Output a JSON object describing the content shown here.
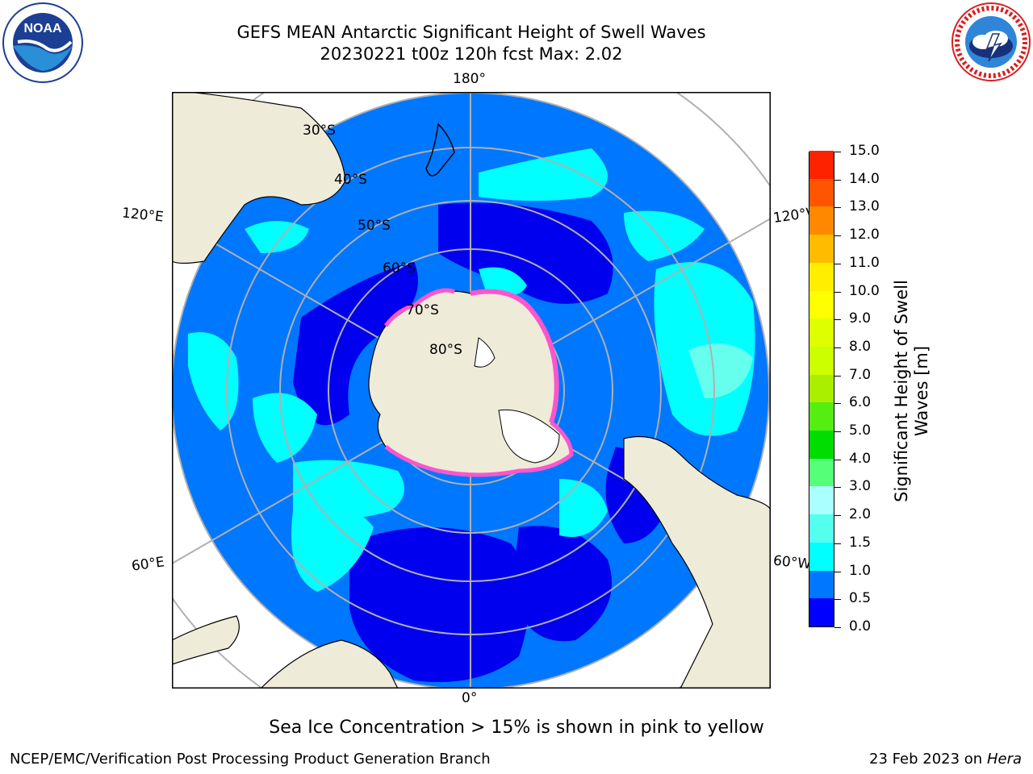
{
  "title": {
    "line1": "GEFS MEAN Antarctic Significant Height of Swell Waves",
    "line2": "20230221 t00z 120h fcst   Max: 2.02"
  },
  "logos": {
    "left": {
      "text": "NOAA",
      "ring_text": "NATIONAL OCEANIC AND ATMOSPHERIC ADMINISTRATION · U.S. DEPARTMENT OF COMMERCE"
    },
    "right": {
      "ring_text": "NATIONAL WEATHER SERVICE"
    }
  },
  "map": {
    "projection": "south polar stereographic",
    "meridian_labels": {
      "top": "180°",
      "bottom": "0°",
      "left_upper": "120°E",
      "left_lower": "60°E",
      "right_upper": "120°W",
      "right_lower": "60°W"
    },
    "parallel_labels": [
      "30°S",
      "40°S",
      "50°S",
      "60°S",
      "70°S",
      "80°S"
    ],
    "colors": {
      "ocean_low": "#0000ee",
      "ocean_mid": "#0077ff",
      "ocean_high": "#00ffff",
      "ocean_higher": "#66ffee",
      "land": "#eeebd9",
      "sea_ice": "#ff55cc",
      "grid": "#b0b0b0"
    }
  },
  "colorbar": {
    "label": "Significant Height of Swell Waves [m]",
    "label_lines": [
      "Significant Height of Swell",
      "Waves [m]"
    ],
    "ticks": [
      "0.0",
      "0.5",
      "1.0",
      "1.5",
      "2.0",
      "3.0",
      "4.0",
      "5.0",
      "6.0",
      "7.0",
      "8.0",
      "9.0",
      "10.0",
      "11.0",
      "12.0",
      "13.0",
      "14.0",
      "15.0"
    ],
    "colors": [
      "#0000ff",
      "#0077ff",
      "#00ffff",
      "#55ffee",
      "#aaffff",
      "#55ff77",
      "#00dd00",
      "#55ee11",
      "#aaee00",
      "#ccff00",
      "#ddff00",
      "#ffff00",
      "#ffee00",
      "#ffbb00",
      "#ff8800",
      "#ff5500",
      "#ff2200"
    ]
  },
  "ice_note": "Sea Ice Concentration > 15% is shown in pink to yellow",
  "footer": {
    "credit": "NCEP/EMC/Verification Post Processing Product Generation Branch",
    "date": "23 Feb 2023 on",
    "host": "Hera"
  }
}
